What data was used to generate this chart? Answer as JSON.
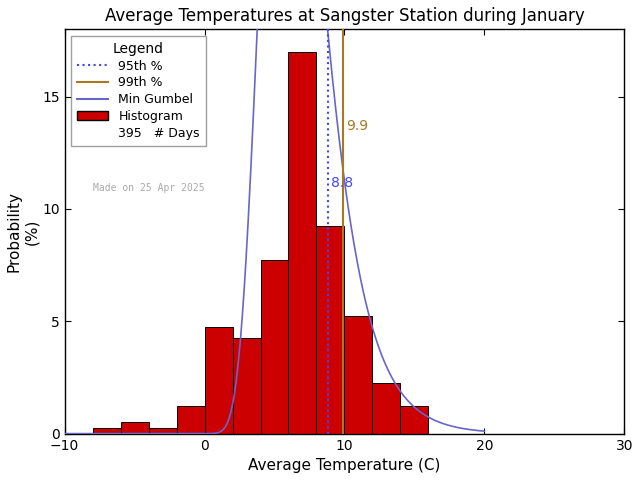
{
  "title": "Average Temperatures at Sangster Station during January",
  "xlabel": "Average Temperature (C)",
  "ylabel": "Probability\n(%)",
  "xlim": [
    -10,
    30
  ],
  "ylim": [
    0,
    18
  ],
  "xticks": [
    -10,
    0,
    10,
    20,
    30
  ],
  "yticks": [
    0,
    5,
    10,
    15
  ],
  "bin_edges": [
    -8,
    -6,
    -4,
    -2,
    0,
    2,
    4,
    6,
    8,
    10,
    12,
    14
  ],
  "bin_heights": [
    0.25,
    0.5,
    0.25,
    1.25,
    4.75,
    4.25,
    7.75,
    17.0,
    9.25,
    5.25,
    2.25,
    1.25
  ],
  "bar_color": "#cc0000",
  "bar_edgecolor": "#000000",
  "gumbel_color": "#6666cc",
  "percentile_95": 8.8,
  "percentile_99": 9.9,
  "p95_color": "#4444ff",
  "p99_color": "#aa7722",
  "p95_label": "8.8",
  "p99_label": "9.9",
  "n_days": 395,
  "watermark": "Made on 25 Apr 2025",
  "watermark_color": "#aaaaaa",
  "background_color": "#ffffff",
  "legend_title": "Legend",
  "gumbel_mu": 5.8,
  "gumbel_beta": 2.1,
  "title_fontsize": 12,
  "axis_fontsize": 11,
  "tick_fontsize": 10
}
